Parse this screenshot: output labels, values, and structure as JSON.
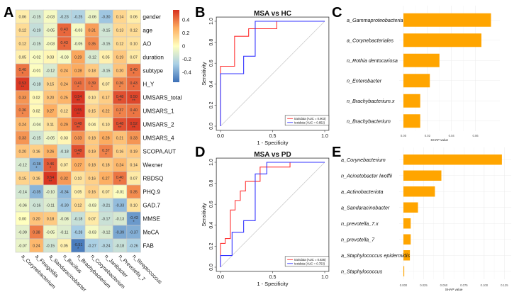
{
  "panels": {
    "A": "A",
    "B": "B",
    "C": "C",
    "D": "D",
    "E": "E"
  },
  "chart_data": [
    {
      "id": "A",
      "type": "heatmap",
      "title": "",
      "rows": [
        "gender",
        "age",
        "AO",
        "duration",
        "subtype",
        "H_Y",
        "UMSARS_total",
        "UMSARS_1",
        "UMSARS_2",
        "UMSARS_4",
        "SCOPA.AUT",
        "Wexner",
        "RBDSQ",
        "PHQ.9",
        "GAD.7",
        "MMSE",
        "MoCA",
        "FAB"
      ],
      "columns": [
        "a_Corynebacterium",
        "a_Finegoldia",
        "a_Sandaracinobacter",
        "n_Bacillus",
        "n_Brachybacterium",
        "n_Corynebacterium",
        "n_Janibacter",
        "n_Prevotella_7",
        "n_Streptococcus"
      ],
      "values": [
        [
          0.06,
          -0.15,
          -0.03,
          -0.23,
          -0.25,
          -0.06,
          -0.3,
          0.14,
          0.06
        ],
        [
          0.12,
          -0.19,
          -0.05,
          0.43,
          -0.03,
          0.31,
          -0.15,
          0.13,
          0.12
        ],
        [
          0.12,
          -0.15,
          -0.03,
          0.43,
          -0.05,
          0.35,
          -0.15,
          0.12,
          0.1
        ],
        [
          0.05,
          -0.02,
          0.03,
          -0.03,
          0.29,
          -0.12,
          0.05,
          0.19,
          0.07
        ],
        [
          0.4,
          -0.01,
          -0.12,
          0.24,
          0.28,
          0.18,
          -0.15,
          0.2,
          0.4
        ],
        [
          0.53,
          -0.18,
          0.15,
          0.24,
          0.41,
          0.39,
          0.07,
          0.36,
          0.43
        ],
        [
          0.33,
          0.02,
          0.2,
          0.25,
          0.54,
          0.1,
          0.17,
          0.48,
          0.5
        ],
        [
          0.36,
          0.02,
          0.27,
          0.12,
          0.55,
          0.15,
          0.22,
          0.37,
          0.4
        ],
        [
          0.24,
          -0.04,
          0.11,
          0.29,
          0.48,
          0.04,
          0.1,
          0.48,
          0.52
        ],
        [
          0.33,
          -0.15,
          -0.05,
          0.03,
          0.33,
          0.18,
          0.28,
          0.21,
          0.33
        ],
        [
          0.2,
          0.16,
          0.26,
          -0.18,
          0.48,
          0.19,
          0.37,
          0.16,
          0.19
        ],
        [
          -0.12,
          -0.38,
          0.46,
          0.07,
          0.27,
          0.18,
          0.18,
          0.24,
          0.14
        ],
        [
          0.15,
          0.16,
          0.54,
          0.32,
          0.1,
          0.16,
          0.27,
          0.4,
          0.07
        ],
        [
          -0.14,
          -0.35,
          -0.1,
          -0.34,
          0.05,
          0.16,
          0.07,
          -0.01,
          0.35
        ],
        [
          -0.06,
          -0.16,
          -0.11,
          -0.3,
          0.12,
          -0.03,
          -0.21,
          -0.33,
          0.1
        ],
        [
          0.0,
          0.2,
          0.18,
          -0.08,
          -0.18,
          0.07,
          -0.17,
          -0.13,
          -0.43
        ],
        [
          -0.09,
          0.38,
          -0.05,
          -0.11,
          -0.28,
          -0.03,
          -0.12,
          -0.39,
          -0.37
        ],
        [
          -0.07,
          0.24,
          -0.15,
          0.05,
          -0.51,
          -0.27,
          -0.24,
          -0.18,
          -0.26
        ]
      ],
      "significance": [
        [
          "",
          "",
          "",
          "",
          "",
          "",
          "",
          "",
          ""
        ],
        [
          "",
          "",
          "",
          "*",
          "",
          "",
          "",
          "",
          ""
        ],
        [
          "",
          "",
          "",
          "*",
          "",
          "",
          "",
          "",
          ""
        ],
        [
          "",
          "",
          "",
          "",
          "",
          "",
          "",
          "",
          ""
        ],
        [
          "*",
          "",
          "",
          "",
          "",
          "",
          "",
          "",
          "*"
        ],
        [
          "**",
          "",
          "",
          "",
          "*",
          "*",
          "",
          "*",
          "*"
        ],
        [
          "",
          "",
          "",
          "",
          "**",
          "",
          "",
          "**",
          "**"
        ],
        [
          "*",
          "",
          "",
          "",
          "**",
          "",
          "",
          "*",
          "*"
        ],
        [
          "",
          "",
          "",
          "",
          "**",
          "",
          "",
          "**",
          "**"
        ],
        [
          "",
          "",
          "",
          "",
          "",
          "",
          "",
          "",
          ""
        ],
        [
          "",
          "",
          "",
          "",
          "**",
          "",
          "*",
          "",
          ""
        ],
        [
          "",
          "*",
          "*",
          "",
          "",
          "",
          "",
          "",
          ""
        ],
        [
          "",
          "",
          "**",
          "",
          "",
          "",
          "",
          "*",
          ""
        ],
        [
          "",
          "",
          "",
          "",
          "",
          "",
          "",
          "",
          ""
        ],
        [
          "",
          "",
          "",
          "",
          "",
          "",
          "",
          "",
          ""
        ],
        [
          "",
          "",
          "",
          "",
          "",
          "",
          "",
          "",
          "*"
        ],
        [
          "",
          "",
          "",
          "",
          "",
          "",
          "",
          "",
          ""
        ],
        [
          "",
          "",
          "",
          "",
          "*",
          "",
          "",
          "",
          ""
        ]
      ],
      "colorbar": {
        "range": [
          -0.55,
          0.55
        ],
        "ticks": [
          "0.4",
          "0.2",
          "0",
          "-0.2",
          "-0.4"
        ],
        "tick_values": [
          0.4,
          0.2,
          0,
          -0.2,
          -0.4
        ],
        "low_color": "#3b6fb6",
        "mid_color": "#ffffbf",
        "high_color": "#d7301f"
      }
    },
    {
      "id": "B",
      "type": "line",
      "title": "MSA vs HC",
      "xlabel": "1 - Specificity",
      "ylabel": "Sensitivity",
      "xlim": [
        0,
        1
      ],
      "ylim": [
        0,
        1
      ],
      "xticks": [
        "0.0",
        "0.5",
        "1.0"
      ],
      "yticks": [
        "0.0",
        "0.2",
        "0.4",
        "0.6",
        "0.8",
        "1.0"
      ],
      "legend_position": "bottom-right",
      "series": [
        {
          "name": "traindata (AUC = 0.903)",
          "color": "#ff3333",
          "x": [
            0,
            0,
            0.135,
            0.135,
            0.27,
            0.27,
            0.54,
            0.54,
            1
          ],
          "y": [
            0,
            0.571,
            0.571,
            0.857,
            0.857,
            0.929,
            0.929,
            1,
            1
          ]
        },
        {
          "name": "testdata (AUC = 0.852)",
          "color": "#3333ff",
          "x": [
            0,
            0,
            0.222,
            0.222,
            0.333,
            0.333,
            1
          ],
          "y": [
            0,
            0.5,
            0.5,
            0.667,
            0.667,
            1,
            1
          ]
        }
      ],
      "reference_line": "diagonal"
    },
    {
      "id": "D",
      "type": "line",
      "title": "MSA vs PD",
      "xlabel": "1 - Specificity",
      "ylabel": "Sensitivity",
      "xlim": [
        0,
        1
      ],
      "ylim": [
        0,
        1
      ],
      "xticks": [
        "0.0",
        "0.5",
        "1.0"
      ],
      "yticks": [
        "0.0",
        "0.2",
        "0.4",
        "0.6",
        "0.8",
        "1.0"
      ],
      "legend_position": "bottom-right",
      "series": [
        {
          "name": "traindata (AUC = 0.836)",
          "color": "#ff3333",
          "x": [
            0,
            0,
            0.045,
            0.045,
            0.095,
            0.095,
            0.14,
            0.14,
            0.19,
            0.19,
            0.24,
            0.24,
            0.38,
            0.38,
            0.667,
            0.667,
            1
          ],
          "y": [
            0,
            0.227,
            0.227,
            0.273,
            0.273,
            0.545,
            0.545,
            0.636,
            0.636,
            0.727,
            0.727,
            0.818,
            0.818,
            0.955,
            0.955,
            1,
            1
          ]
        },
        {
          "name": "testdata (AUC = 0.753)",
          "color": "#3333ff",
          "x": [
            0,
            0,
            0.111,
            0.111,
            0.222,
            0.222,
            0.333,
            0.333,
            0.444,
            0.444,
            1
          ],
          "y": [
            0,
            0.111,
            0.111,
            0.333,
            0.333,
            0.444,
            0.444,
            0.889,
            0.889,
            1,
            1
          ]
        }
      ],
      "reference_line": "diagonal"
    },
    {
      "id": "C",
      "type": "bar",
      "orientation": "horizontal",
      "title": "",
      "xlabel": "SHAP value",
      "categories": [
        "a_Gammaproteobacteria",
        "a_Corynebacteriales",
        "n_Rothia dentocariosa",
        "n_Enterobacter",
        "n_Brachybacterium.x",
        "n_Brachybacterium"
      ],
      "values": [
        0.073,
        0.065,
        0.03,
        0.022,
        0.014,
        0.014
      ],
      "xlim": [
        0,
        0.078
      ],
      "xticks": [
        0.0,
        0.02,
        0.04,
        0.06
      ],
      "xtick_labels": [
        "0.00",
        "0.02",
        "0.04",
        "0.06"
      ],
      "bar_color": "#ffa500",
      "grid": true
    },
    {
      "id": "E",
      "type": "bar",
      "orientation": "horizontal",
      "title": "",
      "xlabel": "SHAP value",
      "categories": [
        "a_Corynebacterium",
        "n_Acinetobacter lwoffii",
        "a_Actinobacteriota",
        "a_Sandaracinobacter",
        "n_prevotella_7.x",
        "n_prevotella_7",
        "a_Staphylococcus epidermidis",
        "n_Staphylococcus"
      ],
      "values": [
        0.122,
        0.047,
        0.039,
        0.018,
        0.009,
        0.009,
        0.008,
        0.001
      ],
      "xlim": [
        0,
        0.13
      ],
      "xticks": [
        0.0,
        0.025,
        0.05,
        0.075,
        0.1,
        0.125
      ],
      "xtick_labels": [
        "0.000",
        "0.025",
        "0.050",
        "0.075",
        "0.100",
        "0.125"
      ],
      "bar_color": "#ffa500",
      "grid": true
    }
  ]
}
